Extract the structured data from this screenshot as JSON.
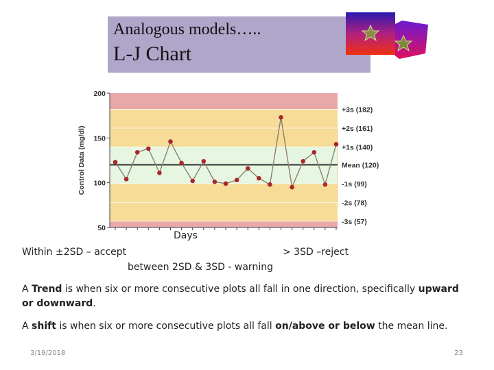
{
  "slide": {
    "title_line1": "Analogous models…..",
    "title_line2": "L-J Chart",
    "days_label": "Days",
    "accept_text": "Within ±2SD – accept",
    "reject_text": "> 3SD –reject",
    "warning_text": "between 2SD & 3SD - warning",
    "trend_parts": [
      " A ",
      "Trend",
      " is when six or more consecutive plots all fall in one direction, specifically ",
      "upward or downward",
      "."
    ],
    "shift_parts": [
      "A ",
      "shift",
      " is when six or more consecutive plots all fall ",
      "on/above or below",
      " the mean line."
    ],
    "footer_date": "3/19/2018",
    "footer_page": "23"
  },
  "colors": {
    "title_bg": "#b0a6ca",
    "zone_outer": "#e8a8a8",
    "zone_warning": "#f6dc96",
    "zone_inner": "#e6f6e0",
    "mean_line": "#333333",
    "series": "#8a8070",
    "point": "#a8282c"
  },
  "chart_data": {
    "type": "line",
    "ylabel": "Control Data (mg/dl)",
    "ylim": [
      50,
      200
    ],
    "yticks": [
      "200",
      "150",
      "100",
      "50"
    ],
    "ytick_values": [
      200,
      150,
      100,
      50
    ],
    "x": [
      1,
      2,
      3,
      4,
      5,
      6,
      7,
      8,
      9,
      10,
      11,
      12,
      13,
      14,
      15,
      16,
      17,
      18,
      19,
      20,
      21
    ],
    "values": [
      123,
      104,
      134,
      138,
      111,
      146,
      122,
      102,
      124,
      101,
      99,
      103,
      116,
      105,
      98,
      173,
      95,
      124,
      134,
      98,
      143
    ],
    "mean": 120,
    "control_lines": [
      {
        "label": "+3s (182)",
        "value": 182
      },
      {
        "label": "+2s (161)",
        "value": 161
      },
      {
        "label": "+1s (140)",
        "value": 140
      },
      {
        "label": "Mean (120)",
        "value": 120
      },
      {
        "label": "-1s (99)",
        "value": 99
      },
      {
        "label": "-2s (78)",
        "value": 78
      },
      {
        "label": "-3s (57)",
        "value": 57
      }
    ],
    "grid": false
  }
}
